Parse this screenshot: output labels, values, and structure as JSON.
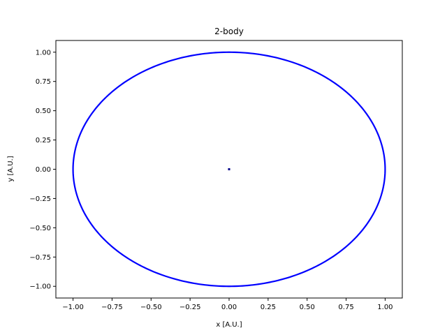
{
  "chart_data": {
    "type": "scatter",
    "title": "2-body",
    "xlabel": "x [A.U.]",
    "ylabel": "y [A.U.]",
    "xlim": [
      -1.11,
      1.11
    ],
    "ylim": [
      -1.1,
      1.1
    ],
    "xticks": [
      -1.0,
      -0.75,
      -0.5,
      -0.25,
      0.0,
      0.25,
      0.5,
      0.75,
      1.0
    ],
    "xtick_labels": [
      "−1.00",
      "−0.75",
      "−0.50",
      "−0.25",
      "0.00",
      "0.25",
      "0.50",
      "0.75",
      "1.00"
    ],
    "yticks": [
      -1.0,
      -0.75,
      -0.5,
      -0.25,
      0.0,
      0.25,
      0.5,
      0.75,
      1.0
    ],
    "ytick_labels": [
      "−1.00",
      "−0.75",
      "−0.50",
      "−0.25",
      "0.00",
      "0.25",
      "0.50",
      "0.75",
      "1.00"
    ],
    "grid": false,
    "series": [
      {
        "orbit": {
          "shape": "ellipse",
          "center": [
            0.0,
            0.0
          ],
          "semi_x": 1.0,
          "semi_y": 1.0,
          "points": 360
        },
        "color": "#0000ff"
      },
      {
        "x": [
          0.0
        ],
        "y": [
          0.0
        ],
        "color": "#00008b"
      }
    ]
  }
}
